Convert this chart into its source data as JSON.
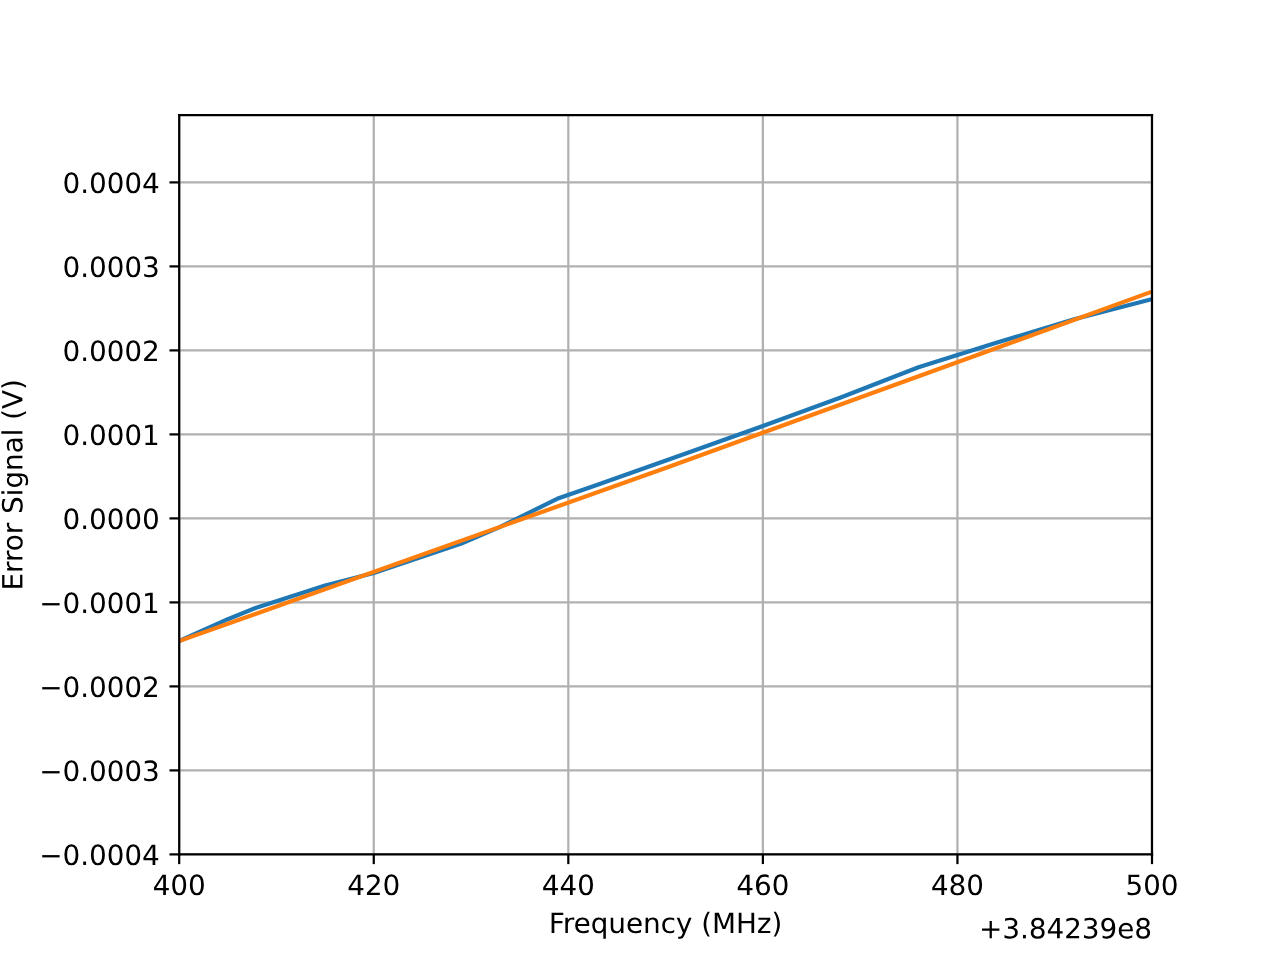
{
  "chart_data": {
    "type": "line",
    "xlabel": "Frequency (MHz)",
    "ylabel": "Error Signal (V)",
    "series": [
      {
        "color": "#1f77b4",
        "x": [
          400,
          405,
          408,
          415,
          420,
          429,
          433,
          439,
          443,
          452,
          460,
          468,
          476,
          484,
          492,
          500
        ],
        "values": [
          -0.000146,
          -0.00012,
          -0.000106,
          -8e-05,
          -6.5e-05,
          -3e-05,
          -1e-05,
          2.4e-05,
          4e-05,
          7.7e-05,
          0.00011,
          0.000144,
          0.00018,
          0.000209,
          0.000237,
          0.000261
        ]
      },
      {
        "color": "#ff7f0e",
        "x": [
          400,
          450,
          500
        ],
        "values": [
          -0.000146,
          6e-05,
          0.00027
        ]
      }
    ],
    "xlim": [
      400,
      500
    ],
    "xticks": [
      400,
      420,
      440,
      460,
      480,
      500
    ],
    "ylim": [
      -0.0004,
      0.00048
    ],
    "yticks": [
      {
        "value": -0.0004,
        "label": "−0.0004"
      },
      {
        "value": -0.0003,
        "label": "−0.0003"
      },
      {
        "value": -0.0002,
        "label": "−0.0002"
      },
      {
        "value": -0.0001,
        "label": "−0.0001"
      },
      {
        "value": 0,
        "label": "0.0000"
      },
      {
        "value": 0.0001,
        "label": "0.0001"
      },
      {
        "value": 0.0002,
        "label": "0.0002"
      },
      {
        "value": 0.0003,
        "label": "0.0003"
      },
      {
        "value": 0.0004,
        "label": "0.0004"
      }
    ],
    "grid": true,
    "annotations": [
      "+3.84239e8"
    ]
  }
}
